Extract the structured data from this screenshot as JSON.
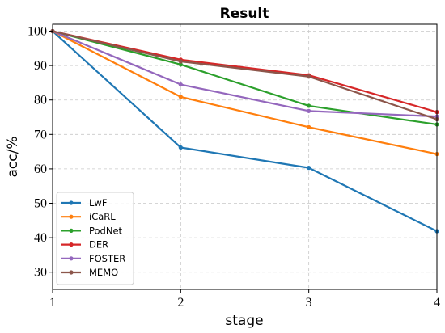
{
  "chart_data": {
    "type": "line",
    "title": "Result",
    "xlabel": "stage",
    "ylabel": "acc/%",
    "x": [
      1,
      2,
      3,
      4
    ],
    "x_ticks": [
      "1",
      "2",
      "3",
      "4"
    ],
    "y_ticks": [
      "30",
      "40",
      "50",
      "60",
      "70",
      "80",
      "90",
      "100"
    ],
    "xlim": [
      1,
      4
    ],
    "ylim": [
      25,
      102
    ],
    "grid": true,
    "legend_position": "lower-left",
    "series": [
      {
        "name": "LwF",
        "color": "#1f77b4",
        "values": [
          100,
          66.2,
          60.3,
          41.9
        ]
      },
      {
        "name": "iCaRL",
        "color": "#ff7f0e",
        "values": [
          100,
          80.9,
          72.1,
          64.3
        ]
      },
      {
        "name": "PodNet",
        "color": "#2ca02c",
        "values": [
          100,
          90.3,
          78.3,
          72.9
        ]
      },
      {
        "name": "DER",
        "color": "#d62728",
        "values": [
          100,
          91.7,
          87.2,
          76.5
        ]
      },
      {
        "name": "FOSTER",
        "color": "#9467bd",
        "values": [
          100,
          84.5,
          76.8,
          75.2
        ]
      },
      {
        "name": "MEMO",
        "color": "#8c564b",
        "values": [
          100,
          91.2,
          86.8,
          74.4
        ]
      }
    ]
  }
}
